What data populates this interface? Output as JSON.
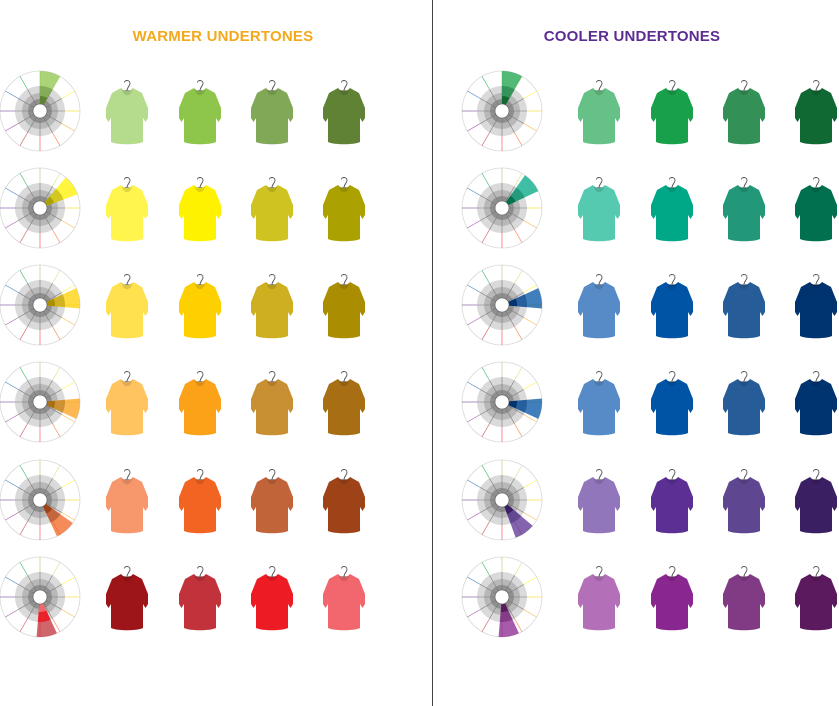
{
  "headings": {
    "warm": "WARMER UNDERTONES",
    "cool": "COOLER UNDERTONES"
  },
  "colors": {
    "warm_heading": "#F4A81D",
    "cool_heading": "#5C2D91",
    "divider": "#444444",
    "wheel_ring_outer": "#DADADA",
    "wheel_ring_mid": "#B8B8B8",
    "wheel_ring_inner": "#8F8F8F"
  },
  "icons": {
    "wheel": "color-wheel-icon",
    "shirt": "shirt-on-hanger-icon"
  },
  "panels": [
    {
      "id": "warm",
      "rows": [
        {
          "hue_angle": 15,
          "shirts": [
            "#B5DC8C",
            "#8DC64A",
            "#81A856",
            "#5F8234"
          ]
        },
        {
          "hue_angle": 55,
          "shirts": [
            "#FFF54D",
            "#FFF200",
            "#CFC322",
            "#ABA100"
          ]
        },
        {
          "hue_angle": 80,
          "shirts": [
            "#FFE04F",
            "#FFD000",
            "#CDAF20",
            "#AA8D00"
          ]
        },
        {
          "hue_angle": 100,
          "shirts": [
            "#FFC360",
            "#FBA219",
            "#C98F33",
            "#A76E14"
          ]
        },
        {
          "hue_angle": 140,
          "shirts": [
            "#F6976C",
            "#F26422",
            "#C1643A",
            "#9E4218"
          ]
        },
        {
          "hue_angle": 170,
          "shirts": [
            "#9E1519",
            "#C1323B",
            "#ED1C24",
            "#F1676D"
          ]
        }
      ]
    },
    {
      "id": "cool",
      "rows": [
        {
          "hue_angle": 15,
          "shirts": [
            "#65C185",
            "#18A14A",
            "#339158",
            "#106832"
          ]
        },
        {
          "hue_angle": 50,
          "shirts": [
            "#56CAB1",
            "#00A887",
            "#229879",
            "#00704F"
          ]
        },
        {
          "hue_angle": 80,
          "shirts": [
            "#578BC7",
            "#0054A6",
            "#265D99",
            "#003471"
          ]
        },
        {
          "hue_angle": 100,
          "shirts": [
            "#578BC7",
            "#0054A6",
            "#265D99",
            "#003471"
          ]
        },
        {
          "hue_angle": 145,
          "shirts": [
            "#9276BB",
            "#5B2F94",
            "#5F4690",
            "#3A1F62"
          ]
        },
        {
          "hue_angle": 170,
          "shirts": [
            "#B370B8",
            "#8A268F",
            "#813B84",
            "#5C1A5E"
          ]
        }
      ]
    }
  ]
}
